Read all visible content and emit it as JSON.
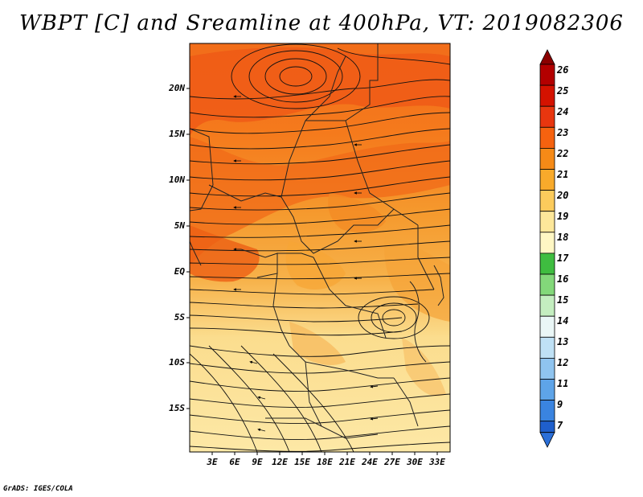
{
  "title": "WBPT [C] and Sreamline at 400hPa, VT: 2019082306",
  "credit": "GrADS: IGES/COLA",
  "map": {
    "lat_labels": [
      "20N",
      "15N",
      "10N",
      "5N",
      "EQ",
      "5S",
      "10S",
      "15S"
    ],
    "lon_labels": [
      "3E",
      "6E",
      "9E",
      "12E",
      "15E",
      "18E",
      "21E",
      "24E",
      "27E",
      "30E",
      "33E"
    ],
    "dominant_fields": [
      {
        "region": "north",
        "color": "#f26d1a"
      },
      {
        "region": "central",
        "color": "#f4a13a"
      },
      {
        "region": "south",
        "color": "#fbe39b"
      }
    ]
  },
  "colorbar": {
    "labels": [
      "26",
      "25",
      "24",
      "23",
      "22",
      "21",
      "20",
      "19",
      "18",
      "17",
      "16",
      "15",
      "14",
      "13",
      "12",
      "11",
      "9",
      "7"
    ],
    "colors": [
      "#b30000",
      "#d41200",
      "#e8360f",
      "#f5620f",
      "#f58a17",
      "#f8aa2b",
      "#fbcb5c",
      "#fde79a",
      "#fff7c4",
      "#3fbd40",
      "#83d87a",
      "#c4eec0",
      "#eaf7f7",
      "#bfe1f5",
      "#8fc4ef",
      "#5ea4e8",
      "#3a84e0",
      "#1f5fcc"
    ]
  }
}
